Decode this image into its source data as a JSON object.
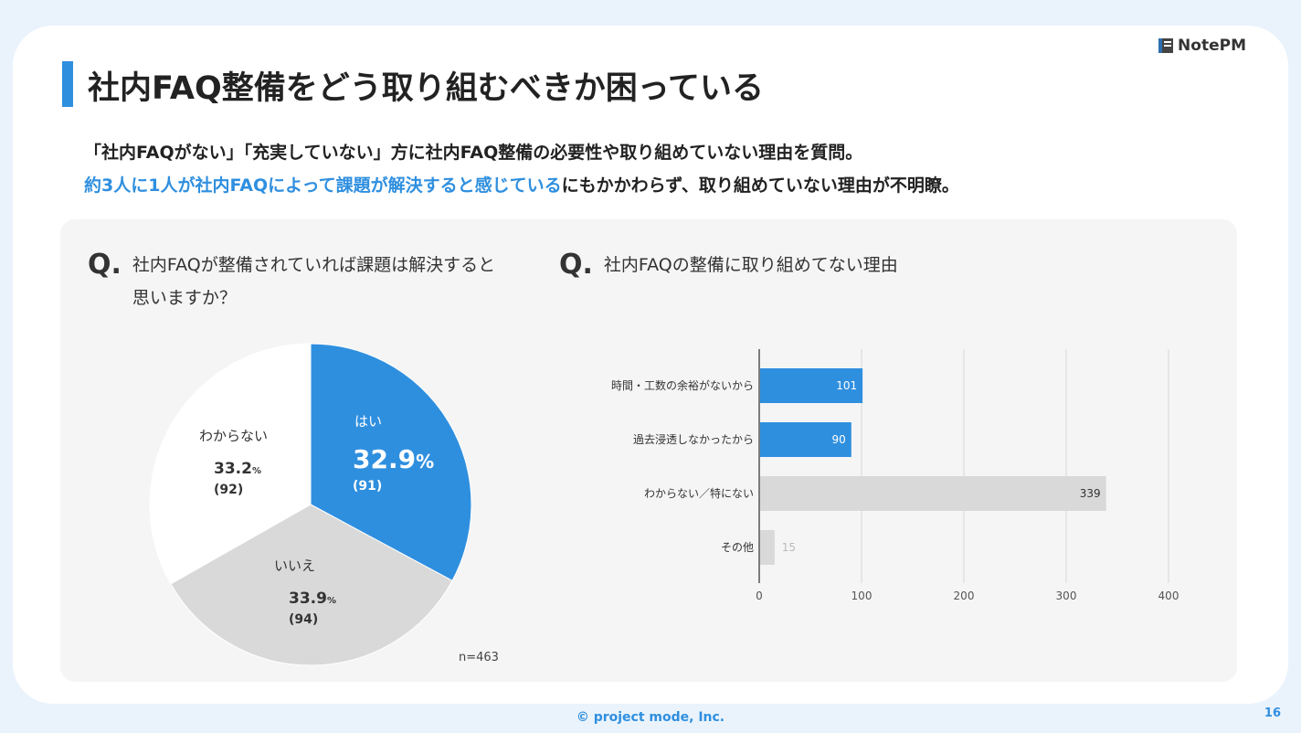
{
  "logo": {
    "text": "NotePM"
  },
  "title": "社内FAQ整備をどう取り組むべきか困っている",
  "description": {
    "line1": "「社内FAQがない」「充実していない」方に社内FAQ整備の必要性や取り組めていない理由を質問。",
    "line2_highlight": "約3人に1人が社内FAQによって課題が解決すると感じている",
    "line2_rest": "にもかかわらず、取り組めていない理由が不明瞭。"
  },
  "q_mark": "Q.",
  "questions": {
    "q1": "社内FAQが整備されていれば課題は解決すると思いますか？",
    "q2": "社内FAQの整備に取り組めてない理由"
  },
  "sample_size": "n=463",
  "footer": "© project mode, Inc.",
  "page_number": "16",
  "colors": {
    "accent": "#2f8fdf",
    "gray": "#d9d9d9",
    "white": "#ffffff"
  },
  "chart_data": [
    {
      "type": "pie",
      "slices": [
        {
          "label": "はい",
          "percent": "32.9",
          "unit": "%",
          "count": "(91)",
          "value": 91,
          "color": "#2f8fdf"
        },
        {
          "label": "いいえ",
          "percent": "33.9",
          "unit": "%",
          "count": "(94)",
          "value": 94,
          "color": "#d9d9d9"
        },
        {
          "label": "わからない",
          "percent": "33.2",
          "unit": "%",
          "count": "(92)",
          "value": 92,
          "color": "#ffffff"
        }
      ]
    },
    {
      "type": "bar",
      "orientation": "horizontal",
      "categories": [
        "時間・工数の余裕がないから",
        "過去浸透しなかったから",
        "わからない／特にない",
        "その他"
      ],
      "values": [
        101,
        90,
        339,
        15
      ],
      "colors": [
        "#2f8fdf",
        "#2f8fdf",
        "#d9d9d9",
        "#d9d9d9"
      ],
      "xlim": [
        0,
        400
      ],
      "ticks": [
        0,
        100,
        200,
        300,
        400
      ],
      "grid": true
    }
  ]
}
